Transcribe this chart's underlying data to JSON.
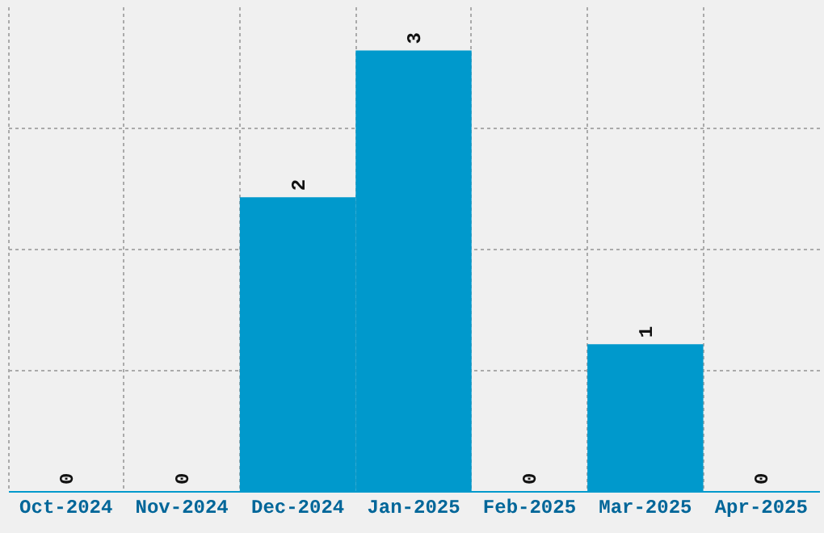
{
  "chart_data": {
    "type": "bar",
    "categories": [
      "Oct-2024",
      "Nov-2024",
      "Dec-2024",
      "Jan-2025",
      "Feb-2025",
      "Mar-2025",
      "Apr-2025"
    ],
    "values": [
      0,
      0,
      2,
      3,
      0,
      1,
      0
    ],
    "color": "#0099cc",
    "ylim": [
      0,
      3.3
    ],
    "yticks": [
      {
        "value": 0.825,
        "label": null
      },
      {
        "value": 1.65,
        "label": null
      },
      {
        "value": 2.475,
        "label": null
      }
    ],
    "tick_labels": "x",
    "grid": true,
    "data_labels": true
  }
}
